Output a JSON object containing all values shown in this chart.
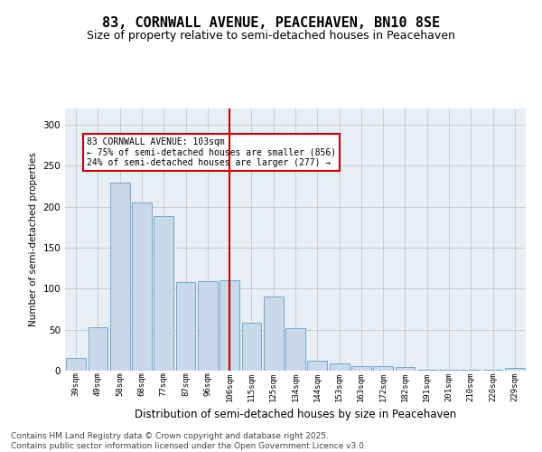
{
  "title": "83, CORNWALL AVENUE, PEACEHAVEN, BN10 8SE",
  "subtitle": "Size of property relative to semi-detached houses in Peacehaven",
  "xlabel": "Distribution of semi-detached houses by size in Peacehaven",
  "ylabel": "Number of semi-detached properties",
  "categories": [
    "39sqm",
    "49sqm",
    "58sqm",
    "68sqm",
    "77sqm",
    "87sqm",
    "96sqm",
    "106sqm",
    "115sqm",
    "125sqm",
    "134sqm",
    "144sqm",
    "153sqm",
    "163sqm",
    "172sqm",
    "182sqm",
    "191sqm",
    "201sqm",
    "210sqm",
    "220sqm",
    "229sqm"
  ],
  "values": [
    16,
    53,
    229,
    205,
    189,
    108,
    109,
    110,
    59,
    90,
    52,
    12,
    9,
    5,
    5,
    4,
    1,
    1,
    1,
    1,
    3
  ],
  "bar_color": "#c9d9ea",
  "bar_edge_color": "#6fa8d0",
  "vline_x_index": 7,
  "vline_color": "#cc0000",
  "annotation_text": "83 CORNWALL AVENUE: 103sqm\n← 75% of semi-detached houses are smaller (856)\n24% of semi-detached houses are larger (277) →",
  "annotation_box_color": "#ffffff",
  "annotation_box_edge": "#cc0000",
  "ylim": [
    0,
    320
  ],
  "yticks": [
    0,
    50,
    100,
    150,
    200,
    250,
    300
  ],
  "grid_color": "#cccccc",
  "background_color": "#e8eef5",
  "title_fontsize": 11,
  "subtitle_fontsize": 9,
  "footer_text": "Contains HM Land Registry data © Crown copyright and database right 2025.\nContains public sector information licensed under the Open Government Licence v3.0.",
  "footer_fontsize": 6.5
}
